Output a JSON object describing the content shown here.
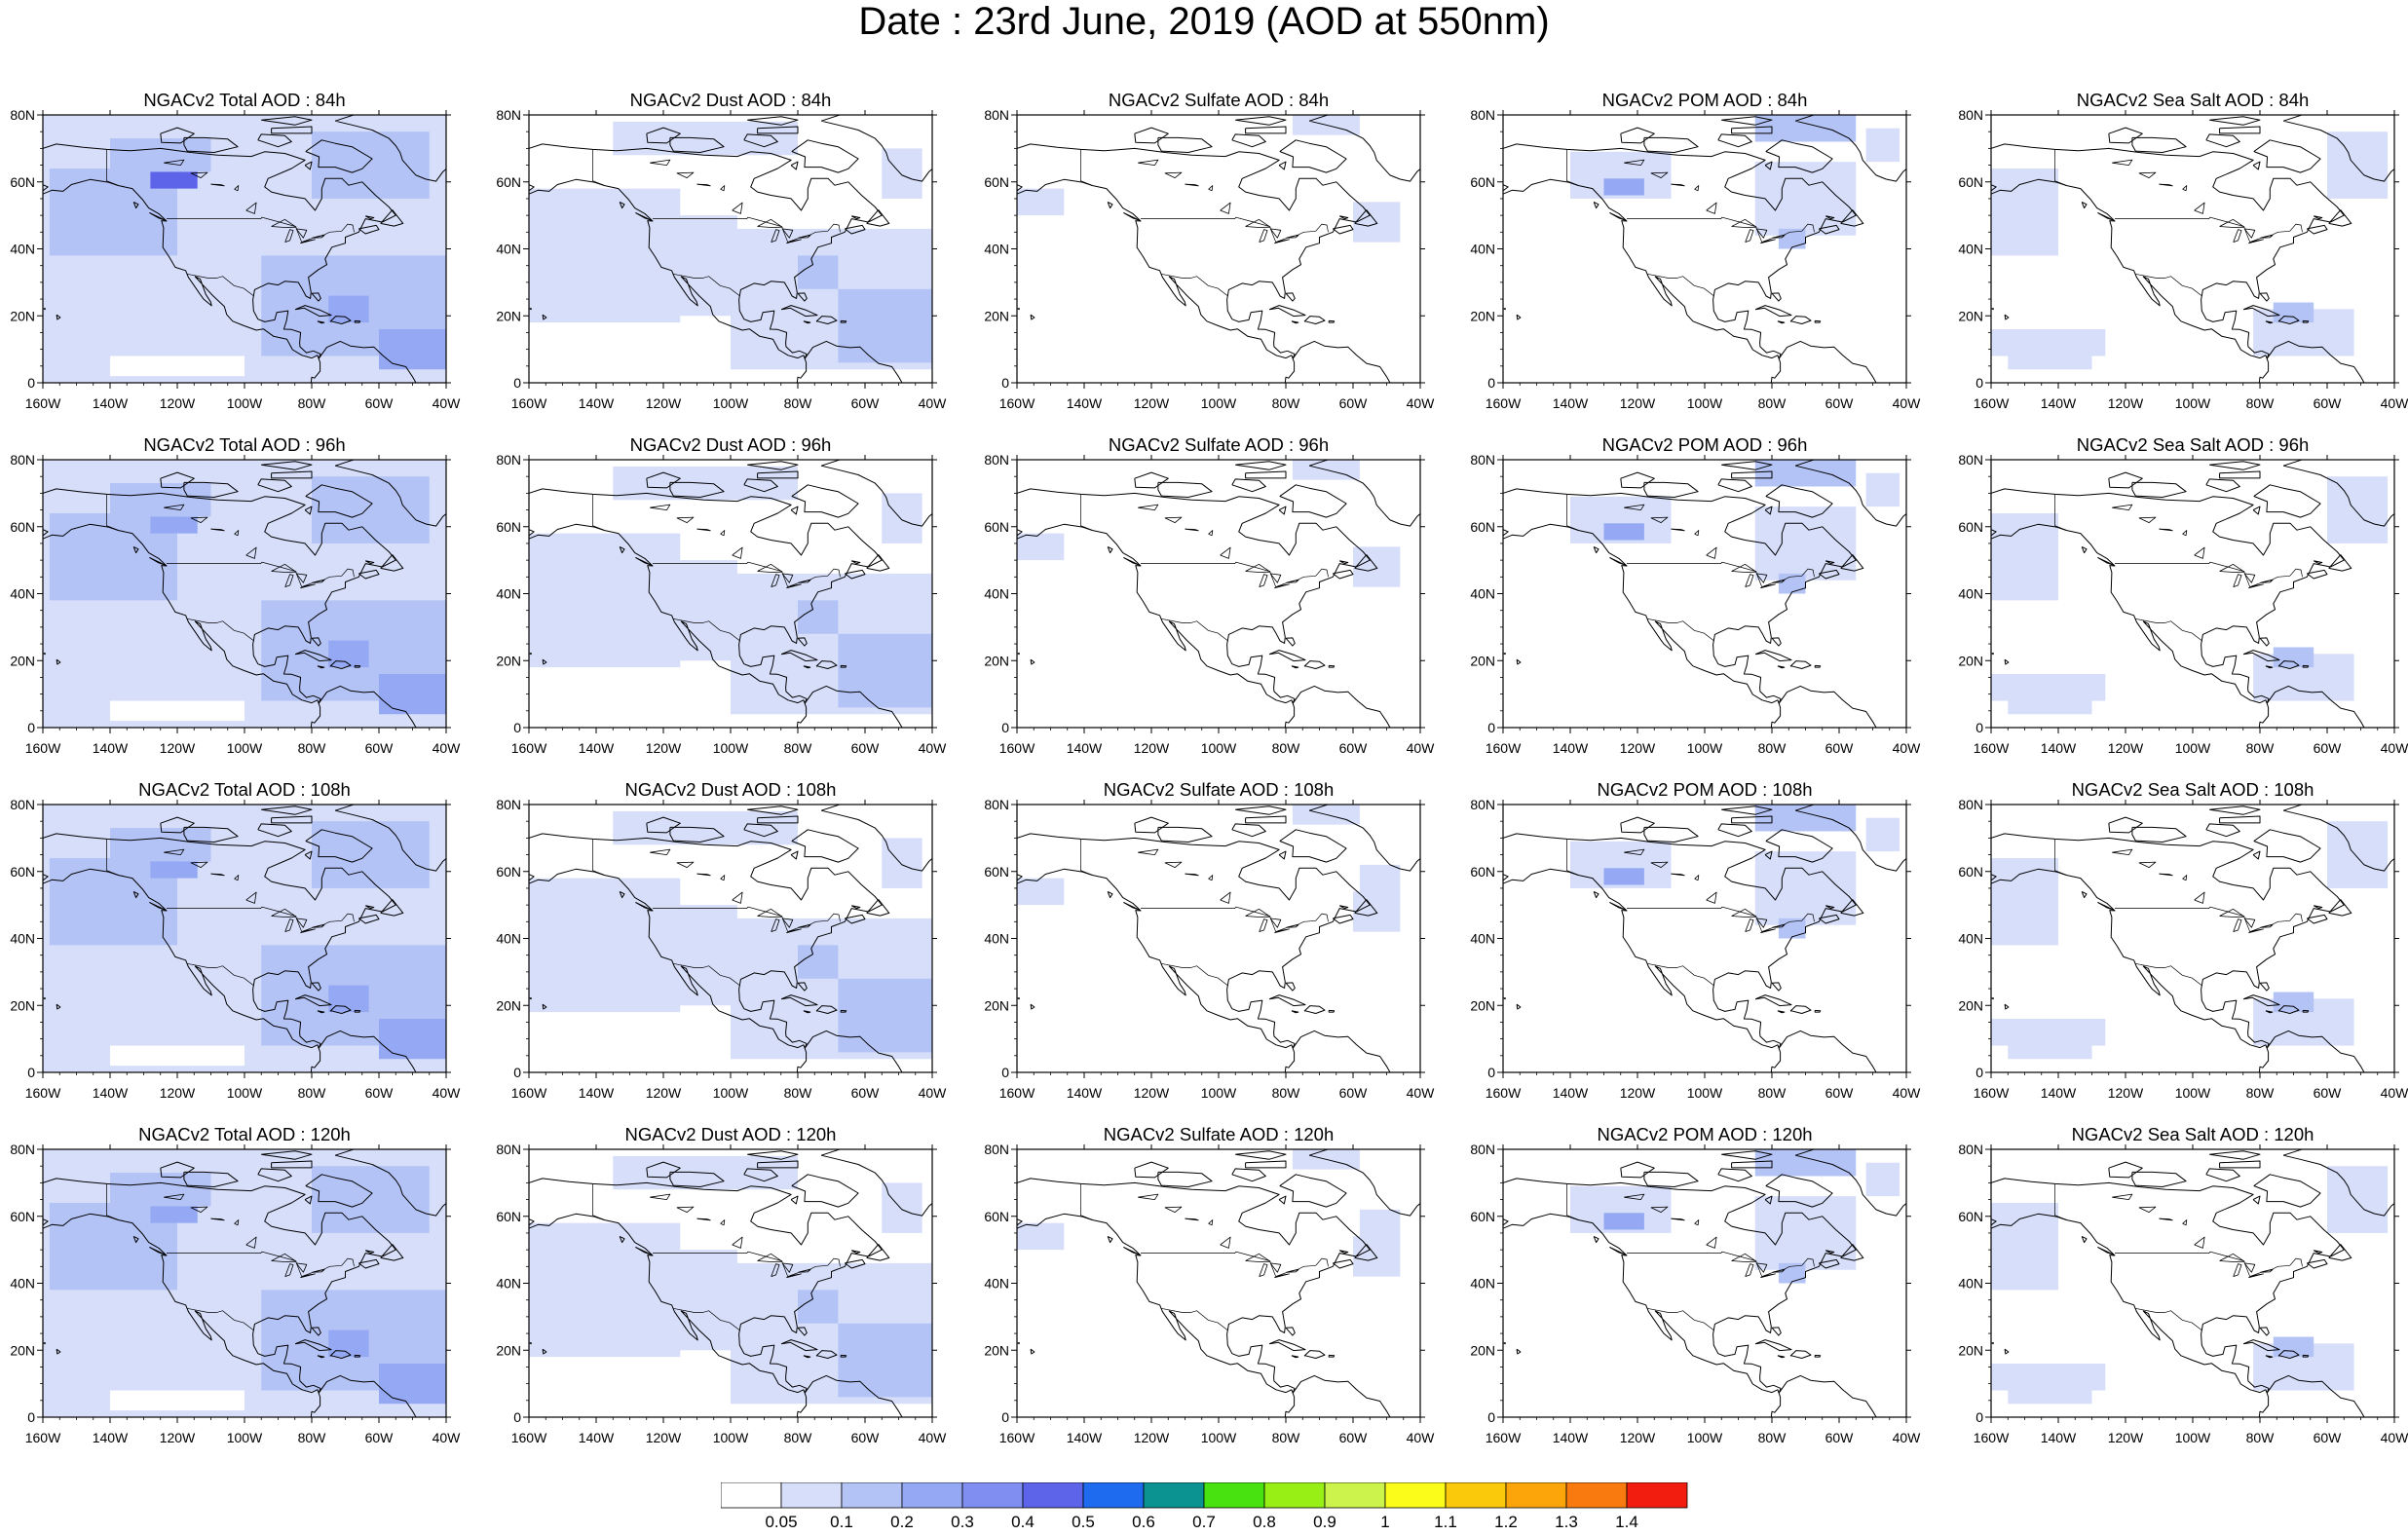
{
  "figure": {
    "title": "Date : 23rd June, 2019 (AOD at 550nm)"
  },
  "axes": {
    "lat_ticks": [
      "80N",
      "60N",
      "40N",
      "20N",
      "0"
    ],
    "lon_ticks": [
      "160W",
      "140W",
      "120W",
      "100W",
      "80W",
      "60W",
      "40W"
    ],
    "lat_range": [
      0,
      80
    ],
    "lon_range": [
      -160,
      -40
    ]
  },
  "panels": [
    {
      "title": "NGACv2 Total AOD : 84h",
      "species": "total",
      "hour": 84
    },
    {
      "title": "NGACv2 Dust AOD : 84h",
      "species": "dust",
      "hour": 84
    },
    {
      "title": "NGACv2 Sulfate AOD : 84h",
      "species": "sulfate",
      "hour": 84
    },
    {
      "title": "NGACv2 POM AOD : 84h",
      "species": "pom",
      "hour": 84
    },
    {
      "title": "NGACv2 Sea Salt AOD : 84h",
      "species": "seasalt",
      "hour": 84
    },
    {
      "title": "NGACv2 Total AOD : 96h",
      "species": "total",
      "hour": 96
    },
    {
      "title": "NGACv2 Dust AOD : 96h",
      "species": "dust",
      "hour": 96
    },
    {
      "title": "NGACv2 Sulfate AOD : 96h",
      "species": "sulfate",
      "hour": 96
    },
    {
      "title": "NGACv2 POM AOD : 96h",
      "species": "pom",
      "hour": 96
    },
    {
      "title": "NGACv2 Sea Salt AOD : 96h",
      "species": "seasalt",
      "hour": 96
    },
    {
      "title": "NGACv2 Total AOD : 108h",
      "species": "total",
      "hour": 108
    },
    {
      "title": "NGACv2 Dust AOD : 108h",
      "species": "dust",
      "hour": 108
    },
    {
      "title": "NGACv2 Sulfate AOD : 108h",
      "species": "sulfate",
      "hour": 108
    },
    {
      "title": "NGACv2 POM AOD : 108h",
      "species": "pom",
      "hour": 108
    },
    {
      "title": "NGACv2 Sea Salt AOD : 108h",
      "species": "seasalt",
      "hour": 108
    },
    {
      "title": "NGACv2 Total AOD : 120h",
      "species": "total",
      "hour": 120
    },
    {
      "title": "NGACv2 Dust AOD : 120h",
      "species": "dust",
      "hour": 120
    },
    {
      "title": "NGACv2 Sulfate AOD : 120h",
      "species": "sulfate",
      "hour": 120
    },
    {
      "title": "NGACv2 POM AOD : 120h",
      "species": "pom",
      "hour": 120
    },
    {
      "title": "NGACv2 Sea Salt  AOD : 120h",
      "species": "seasalt",
      "hour": 120
    }
  ],
  "colorbar": {
    "labels": [
      "0.05",
      "0.1",
      "0.2",
      "0.3",
      "0.4",
      "0.5",
      "0.6",
      "0.7",
      "0.8",
      "0.9",
      "1",
      "1.1",
      "1.2",
      "1.3",
      "1.4"
    ],
    "colors": [
      "#ffffff",
      "#d6defa",
      "#b4c3f6",
      "#94a8f3",
      "#7f8ef0",
      "#5e64ea",
      "#1e6bef",
      "#0a9390",
      "#47e20f",
      "#98ef15",
      "#cbf34b",
      "#fcfc1a",
      "#fbc90b",
      "#fba50b",
      "#f97a0f",
      "#f21d0f"
    ]
  }
}
